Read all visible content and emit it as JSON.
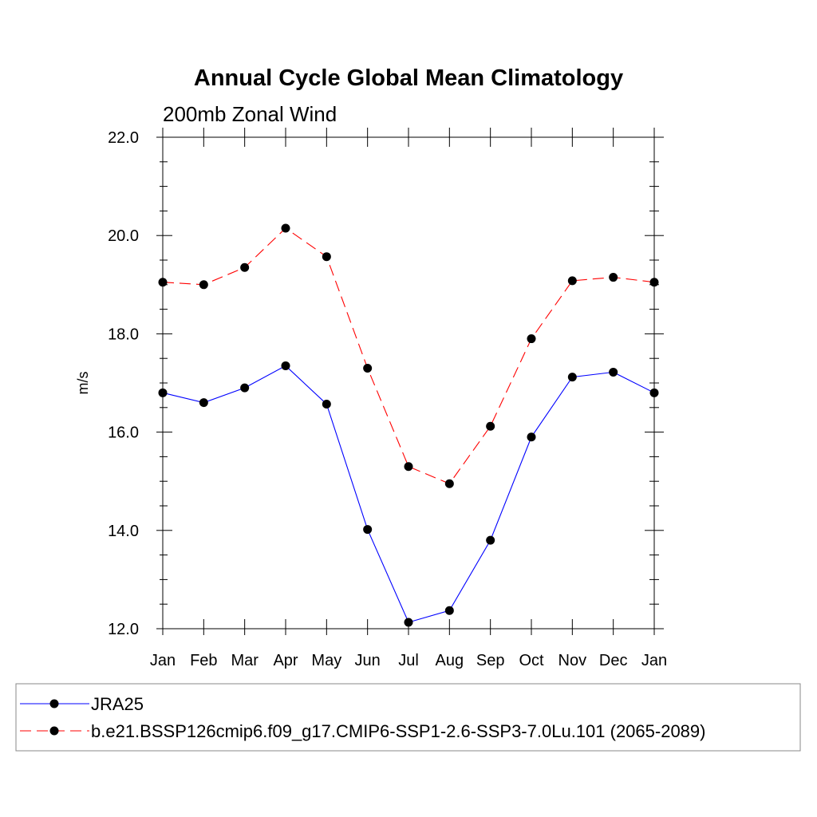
{
  "chart_data": {
    "type": "line",
    "title": "Annual Cycle Global Mean Climatology",
    "subtitle": "200mb Zonal Wind",
    "ylabel": "m/s",
    "xlabel": "",
    "categories": [
      "Jan",
      "Feb",
      "Mar",
      "Apr",
      "May",
      "Jun",
      "Jul",
      "Aug",
      "Sep",
      "Oct",
      "Nov",
      "Dec",
      "Jan"
    ],
    "ylim": [
      12.0,
      22.0
    ],
    "yticks": [
      "12.0",
      "14.0",
      "16.0",
      "18.0",
      "20.0",
      "22.0"
    ],
    "grid": false,
    "legend_position": "bottom",
    "series": [
      {
        "name": "JRA25",
        "color": "#0000ff",
        "dash": "solid",
        "marker": "filled-circle",
        "values": [
          16.8,
          16.6,
          16.9,
          17.35,
          16.57,
          14.02,
          12.13,
          12.37,
          13.8,
          15.9,
          17.12,
          17.22,
          16.8
        ]
      },
      {
        "name": "b.e21.BSSP126cmip6.f09_g17.CMIP6-SSP1-2.6-SSP3-7.0Lu.101 (2065-2089)",
        "color": "#ff0000",
        "dash": "dashed",
        "marker": "filled-circle",
        "values": [
          19.05,
          19.0,
          19.35,
          20.15,
          19.57,
          17.3,
          15.3,
          14.95,
          16.12,
          17.9,
          19.08,
          19.15,
          19.05
        ]
      }
    ]
  }
}
